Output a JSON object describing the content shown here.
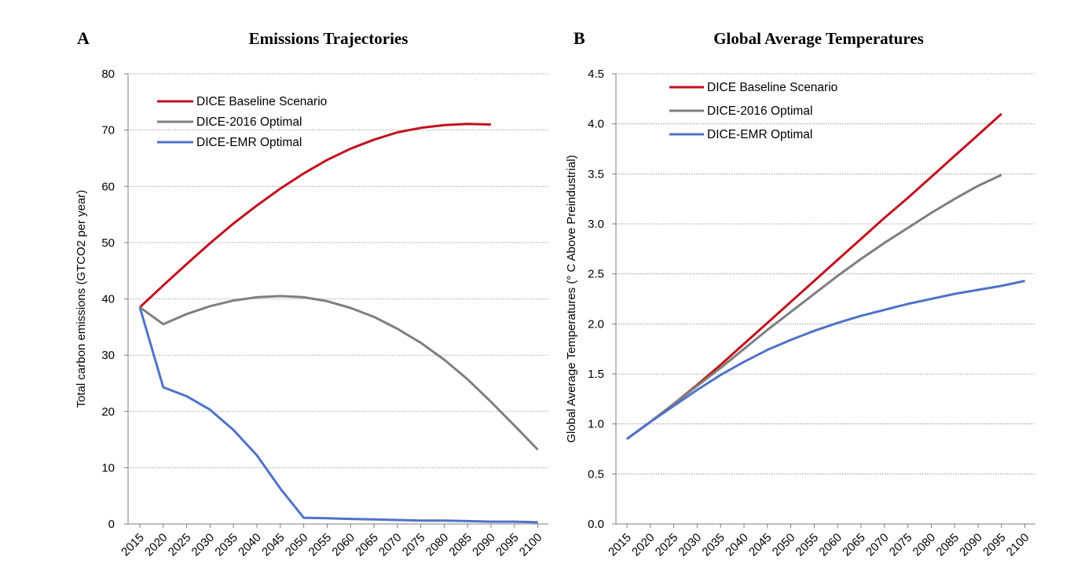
{
  "chart_data": [
    {
      "type": "line",
      "panel": "A",
      "title": "Emissions Trajectories",
      "xlabel": "",
      "ylabel": "Total carbon emissions (GTCO2 per year)",
      "ylim": [
        0,
        80
      ],
      "yticks": [
        "0",
        "10",
        "20",
        "30",
        "40",
        "50",
        "60",
        "70",
        "80"
      ],
      "x": [
        2015,
        2020,
        2025,
        2030,
        2035,
        2040,
        2045,
        2050,
        2055,
        2060,
        2065,
        2070,
        2075,
        2080,
        2085,
        2090,
        2095,
        2100
      ],
      "xtick_labels": [
        "2015",
        "2020",
        "2025",
        "2030",
        "2035",
        "2040",
        "2045",
        "2050",
        "2055",
        "2060",
        "2065",
        "2070",
        "2075",
        "2080",
        "2085",
        "2090",
        "2095",
        "2100"
      ],
      "grid": true,
      "legend_position": "top-left",
      "series": [
        {
          "name": "DICE Baseline Scenario",
          "color": "#c0111f",
          "values": [
            38.5,
            42.4,
            46.2,
            49.9,
            53.4,
            56.6,
            59.6,
            62.3,
            64.7,
            66.7,
            68.3,
            69.6,
            70.4,
            70.9,
            71.1,
            71.0,
            null,
            null
          ]
        },
        {
          "name": "DICE-2016 Optimal",
          "color": "#7f7f7f",
          "values": [
            38.5,
            35.5,
            37.3,
            38.7,
            39.7,
            40.3,
            40.5,
            40.3,
            39.6,
            38.4,
            36.8,
            34.7,
            32.2,
            29.2,
            25.7,
            21.7,
            17.5,
            13.2
          ]
        },
        {
          "name": "DICE-EMR Optimal",
          "color": "#4f73c8",
          "values": [
            38.5,
            24.3,
            22.7,
            20.3,
            16.7,
            12.2,
            6.3,
            1.1,
            1.0,
            0.9,
            0.8,
            0.7,
            0.6,
            0.6,
            0.5,
            0.4,
            0.4,
            0.3
          ]
        }
      ]
    },
    {
      "type": "line",
      "panel": "B",
      "title": "Global Average Temperatures",
      "xlabel": "",
      "ylabel": "Global Average Temperatures (° C Above Preindustrial)",
      "ylim": [
        0,
        4.5
      ],
      "yticks": [
        "0.0",
        "0.5",
        "1.0",
        "1.5",
        "2.0",
        "2.5",
        "3.0",
        "3.5",
        "4.0",
        "4.5"
      ],
      "x": [
        2015,
        2020,
        2025,
        2030,
        2035,
        2040,
        2045,
        2050,
        2055,
        2060,
        2065,
        2070,
        2075,
        2080,
        2085,
        2090,
        2095,
        2100
      ],
      "xtick_labels": [
        "2015",
        "2020",
        "2025",
        "2030",
        "2035",
        "2040",
        "2045",
        "2050",
        "2055",
        "2060",
        "2065",
        "2070",
        "2075",
        "2080",
        "2085",
        "2090",
        "2095",
        "2100"
      ],
      "grid": true,
      "legend_position": "top-left",
      "series": [
        {
          "name": "DICE Baseline Scenario",
          "color": "#c0111f",
          "values": [
            0.85,
            1.02,
            1.2,
            1.39,
            1.59,
            1.8,
            2.01,
            2.22,
            2.43,
            2.64,
            2.85,
            3.06,
            3.26,
            3.47,
            3.68,
            3.89,
            4.1,
            null
          ]
        },
        {
          "name": "DICE-2016 Optimal",
          "color": "#7f7f7f",
          "values": [
            0.85,
            1.02,
            1.2,
            1.38,
            1.56,
            1.75,
            1.94,
            2.12,
            2.3,
            2.48,
            2.65,
            2.81,
            2.96,
            3.11,
            3.25,
            3.38,
            3.49,
            null
          ]
        },
        {
          "name": "DICE-EMR Optimal",
          "color": "#4f73c8",
          "values": [
            0.85,
            1.02,
            1.18,
            1.34,
            1.49,
            1.62,
            1.74,
            1.84,
            1.93,
            2.01,
            2.08,
            2.14,
            2.2,
            2.25,
            2.3,
            2.34,
            2.38,
            2.43
          ]
        }
      ]
    }
  ]
}
